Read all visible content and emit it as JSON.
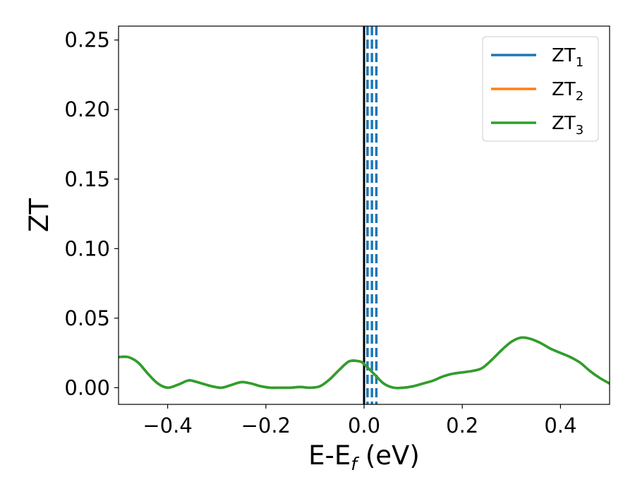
{
  "chart_data": {
    "type": "line",
    "xlabel": {
      "main": "E-E",
      "sub": "f",
      "unit": " (eV)"
    },
    "ylabel": "ZT",
    "xlim": [
      -0.5,
      0.5
    ],
    "ylim": [
      -0.012,
      0.26
    ],
    "xticks": [
      -0.4,
      -0.2,
      0.0,
      0.2,
      0.4
    ],
    "xtick_labels": [
      "−0.4",
      "−0.2",
      "0.0",
      "0.2",
      "0.4"
    ],
    "yticks": [
      0.0,
      0.05,
      0.1,
      0.15,
      0.2,
      0.25
    ],
    "ytick_labels": [
      "0.00",
      "0.05",
      "0.10",
      "0.15",
      "0.20",
      "0.25"
    ],
    "grid": false,
    "legend_position": "top-right",
    "colors": {
      "zt1": "#1f77b4",
      "zt2": "#ff7f0e",
      "zt3": "#2ca02c",
      "fermi": "#000000"
    },
    "legend": [
      {
        "label": "ZT",
        "sub": "1",
        "color": "#1f77b4"
      },
      {
        "label": "ZT",
        "sub": "2",
        "color": "#ff7f0e"
      },
      {
        "label": "ZT",
        "sub": "3",
        "color": "#2ca02c"
      }
    ],
    "vertical_lines": [
      {
        "x": 0.0,
        "style": "solid",
        "color": "#000000"
      },
      {
        "x": 0.007,
        "style": "dashed",
        "color": "#1f77b4"
      },
      {
        "x": 0.016,
        "style": "dashed",
        "color": "#1f77b4"
      },
      {
        "x": 0.025,
        "style": "dashed",
        "color": "#1f77b4"
      }
    ],
    "series": [
      {
        "name": "ZT_1",
        "color": "#1f77b4",
        "x": [
          -0.5,
          -0.48,
          -0.46,
          -0.44,
          -0.42,
          -0.4,
          -0.38,
          -0.36,
          -0.35,
          -0.33,
          -0.31,
          -0.29,
          -0.27,
          -0.25,
          -0.23,
          -0.21,
          -0.19,
          -0.17,
          -0.15,
          -0.13,
          -0.11,
          -0.09,
          -0.07,
          -0.05,
          -0.03,
          -0.01,
          0.0,
          0.02,
          0.04,
          0.06,
          0.08,
          0.1,
          0.12,
          0.14,
          0.16,
          0.18,
          0.2,
          0.22,
          0.24,
          0.26,
          0.28,
          0.3,
          0.32,
          0.34,
          0.36,
          0.38,
          0.4,
          0.42,
          0.44,
          0.46,
          0.48,
          0.5
        ],
        "y": [
          0.022,
          0.022,
          0.018,
          0.01,
          0.003,
          0.0,
          0.002,
          0.005,
          0.005,
          0.003,
          0.001,
          0.0,
          0.002,
          0.004,
          0.003,
          0.001,
          0.0,
          0.0,
          0.0,
          0.0005,
          0.0,
          0.001,
          0.006,
          0.013,
          0.019,
          0.019,
          0.017,
          0.01,
          0.003,
          0.0,
          0.0,
          0.001,
          0.003,
          0.005,
          0.008,
          0.01,
          0.011,
          0.012,
          0.014,
          0.02,
          0.027,
          0.033,
          0.036,
          0.035,
          0.032,
          0.028,
          0.025,
          0.022,
          0.018,
          0.012,
          0.007,
          0.003
        ]
      },
      {
        "name": "ZT_2",
        "color": "#ff7f0e",
        "x": [
          -0.5,
          -0.48,
          -0.46,
          -0.44,
          -0.42,
          -0.4,
          -0.38,
          -0.36,
          -0.35,
          -0.33,
          -0.31,
          -0.29,
          -0.27,
          -0.25,
          -0.23,
          -0.21,
          -0.19,
          -0.17,
          -0.15,
          -0.13,
          -0.11,
          -0.09,
          -0.07,
          -0.05,
          -0.03,
          -0.01,
          0.0,
          0.02,
          0.04,
          0.06,
          0.08,
          0.1,
          0.12,
          0.14,
          0.16,
          0.18,
          0.2,
          0.22,
          0.24,
          0.26,
          0.28,
          0.3,
          0.32,
          0.34,
          0.36,
          0.38,
          0.4,
          0.42,
          0.44,
          0.46,
          0.48,
          0.5
        ],
        "y": [
          0.022,
          0.022,
          0.018,
          0.01,
          0.003,
          0.0,
          0.002,
          0.005,
          0.005,
          0.003,
          0.001,
          0.0,
          0.002,
          0.004,
          0.003,
          0.001,
          0.0,
          0.0,
          0.0,
          0.0005,
          0.0,
          0.001,
          0.006,
          0.013,
          0.019,
          0.019,
          0.017,
          0.01,
          0.003,
          0.0,
          0.0,
          0.001,
          0.003,
          0.005,
          0.008,
          0.01,
          0.011,
          0.012,
          0.014,
          0.02,
          0.027,
          0.033,
          0.036,
          0.035,
          0.032,
          0.028,
          0.025,
          0.022,
          0.018,
          0.012,
          0.007,
          0.003
        ]
      },
      {
        "name": "ZT_3",
        "color": "#2ca02c",
        "x": [
          -0.5,
          -0.48,
          -0.46,
          -0.44,
          -0.42,
          -0.4,
          -0.38,
          -0.36,
          -0.35,
          -0.33,
          -0.31,
          -0.29,
          -0.27,
          -0.25,
          -0.23,
          -0.21,
          -0.19,
          -0.17,
          -0.15,
          -0.13,
          -0.11,
          -0.09,
          -0.07,
          -0.05,
          -0.03,
          -0.01,
          0.0,
          0.02,
          0.04,
          0.06,
          0.08,
          0.1,
          0.12,
          0.14,
          0.16,
          0.18,
          0.2,
          0.22,
          0.24,
          0.26,
          0.28,
          0.3,
          0.32,
          0.34,
          0.36,
          0.38,
          0.4,
          0.42,
          0.44,
          0.46,
          0.48,
          0.5
        ],
        "y": [
          0.022,
          0.022,
          0.018,
          0.01,
          0.003,
          0.0,
          0.002,
          0.005,
          0.005,
          0.003,
          0.001,
          0.0,
          0.002,
          0.004,
          0.003,
          0.001,
          0.0,
          0.0,
          0.0,
          0.0005,
          0.0,
          0.001,
          0.006,
          0.013,
          0.019,
          0.019,
          0.017,
          0.01,
          0.003,
          0.0,
          0.0,
          0.001,
          0.003,
          0.005,
          0.008,
          0.01,
          0.011,
          0.012,
          0.014,
          0.02,
          0.027,
          0.033,
          0.036,
          0.035,
          0.032,
          0.028,
          0.025,
          0.022,
          0.018,
          0.012,
          0.007,
          0.003
        ]
      }
    ]
  }
}
